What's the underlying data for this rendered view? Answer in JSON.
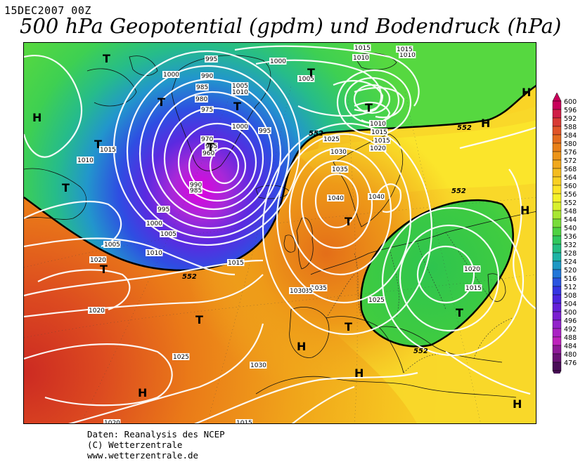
{
  "date_label": "15DEC2007 00Z",
  "title": "500 hPa Geopotential (gpdm) und Bodendruck (hPa)",
  "credits": {
    "line1": "Daten: Reanalysis des NCEP",
    "line2": "(C) Wetterzentrale",
    "line3": "www.wetterzentrale.de"
  },
  "legend": {
    "levels": [
      600,
      596,
      592,
      588,
      584,
      580,
      576,
      572,
      568,
      564,
      560,
      556,
      552,
      548,
      544,
      540,
      536,
      532,
      528,
      524,
      520,
      516,
      512,
      508,
      504,
      500,
      496,
      492,
      488,
      484,
      480,
      476
    ],
    "colors": [
      "#c8005a",
      "#d01e46",
      "#d83a34",
      "#e05428",
      "#e46c1e",
      "#e88018",
      "#ec9418",
      "#f0a81c",
      "#f4bc20",
      "#f8d024",
      "#fce428",
      "#f4f22a",
      "#d8f02c",
      "#a8e632",
      "#78dc3a",
      "#4ed242",
      "#30c85e",
      "#24be82",
      "#1eb4a6",
      "#1e98c4",
      "#2276d8",
      "#2a54e0",
      "#3434e2",
      "#4a24de",
      "#6420d8",
      "#7a20d0",
      "#9222ca",
      "#aa22c4",
      "#be22bc",
      "#8e1a98",
      "#6a1276",
      "#4a0c58"
    ]
  },
  "map": {
    "line_552_label": "552",
    "pressure_labels": [
      "995",
      "1015",
      "1010",
      "1000",
      "1005",
      "990",
      "1000",
      "985",
      "980",
      "975",
      "970",
      "965",
      "960",
      "1005",
      "1010",
      "1000",
      "995",
      "1025",
      "1030",
      "1035",
      "1040",
      "1040",
      "1010",
      "1015",
      "1020",
      "1005",
      "1000",
      "995",
      "1005",
      "1010",
      "1015",
      "1020",
      "1025",
      "1030",
      "1035",
      "1035",
      "1020",
      "1015",
      "1020",
      "1015",
      "1020",
      "1010",
      "1030",
      "1015",
      "1015",
      "1010",
      "1015",
      "1015",
      "990",
      "985",
      "1025"
    ],
    "highs": [
      "H",
      "H",
      "H",
      "H",
      "H",
      "H",
      "H",
      "H"
    ],
    "lows": [
      "T",
      "T",
      "T",
      "T",
      "T",
      "T",
      "T",
      "T",
      "T",
      "T",
      "T",
      "T",
      "T"
    ]
  }
}
